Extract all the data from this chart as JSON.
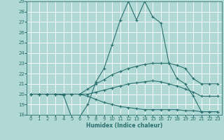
{
  "xlabel": "Humidex (Indice chaleur)",
  "xlim_min": -0.5,
  "xlim_max": 23.5,
  "ylim_min": 18,
  "ylim_max": 29,
  "xticks": [
    0,
    1,
    2,
    3,
    4,
    5,
    6,
    7,
    8,
    9,
    10,
    11,
    12,
    13,
    14,
    15,
    16,
    17,
    18,
    19,
    20,
    21,
    22,
    23
  ],
  "yticks": [
    18,
    19,
    20,
    21,
    22,
    23,
    24,
    25,
    26,
    27,
    28,
    29
  ],
  "bg_color": "#b0d8d4",
  "grid_color": "#ffffff",
  "line_color": "#2a7070",
  "lines": [
    {
      "x": [
        0,
        1,
        2,
        3,
        4,
        5,
        6,
        7,
        8,
        9,
        10,
        11,
        12,
        13,
        14,
        15,
        16,
        17,
        18,
        19,
        20,
        21,
        22,
        23
      ],
      "y": [
        20.0,
        20.0,
        20.0,
        20.0,
        19.9,
        17.8,
        17.8,
        19.0,
        21.2,
        22.5,
        24.8,
        27.2,
        29.0,
        27.2,
        29.0,
        27.5,
        26.9,
        23.0,
        21.5,
        21.0,
        19.8,
        18.3,
        18.3,
        18.3
      ]
    },
    {
      "x": [
        0,
        1,
        2,
        3,
        4,
        5,
        6,
        7,
        8,
        9,
        10,
        11,
        12,
        13,
        14,
        15,
        16,
        17,
        18,
        19,
        20,
        21,
        22,
        23
      ],
      "y": [
        20.0,
        20.0,
        20.0,
        20.0,
        20.0,
        20.0,
        20.0,
        20.5,
        21.0,
        21.4,
        21.9,
        22.2,
        22.5,
        22.7,
        22.9,
        23.0,
        23.0,
        23.0,
        22.8,
        22.5,
        21.5,
        21.0,
        21.0,
        21.0
      ]
    },
    {
      "x": [
        0,
        1,
        2,
        3,
        4,
        5,
        6,
        7,
        8,
        9,
        10,
        11,
        12,
        13,
        14,
        15,
        16,
        17,
        18,
        19,
        20,
        21,
        22,
        23
      ],
      "y": [
        20.0,
        20.0,
        20.0,
        20.0,
        20.0,
        20.0,
        20.0,
        20.0,
        20.2,
        20.4,
        20.6,
        20.8,
        21.0,
        21.1,
        21.2,
        21.3,
        21.2,
        21.0,
        20.8,
        20.5,
        20.2,
        19.8,
        19.8,
        19.8
      ]
    },
    {
      "x": [
        0,
        1,
        2,
        3,
        4,
        5,
        6,
        7,
        8,
        9,
        10,
        11,
        12,
        13,
        14,
        15,
        16,
        17,
        18,
        19,
        20,
        21,
        22,
        23
      ],
      "y": [
        20.0,
        20.0,
        20.0,
        20.0,
        20.0,
        20.0,
        20.0,
        19.8,
        19.5,
        19.2,
        19.0,
        18.8,
        18.7,
        18.6,
        18.5,
        18.5,
        18.5,
        18.5,
        18.5,
        18.4,
        18.4,
        18.3,
        18.3,
        18.3
      ]
    }
  ],
  "tick_fontsize": 5.0,
  "xlabel_fontsize": 5.5,
  "marker_size": 3.0,
  "linewidth": 0.8
}
